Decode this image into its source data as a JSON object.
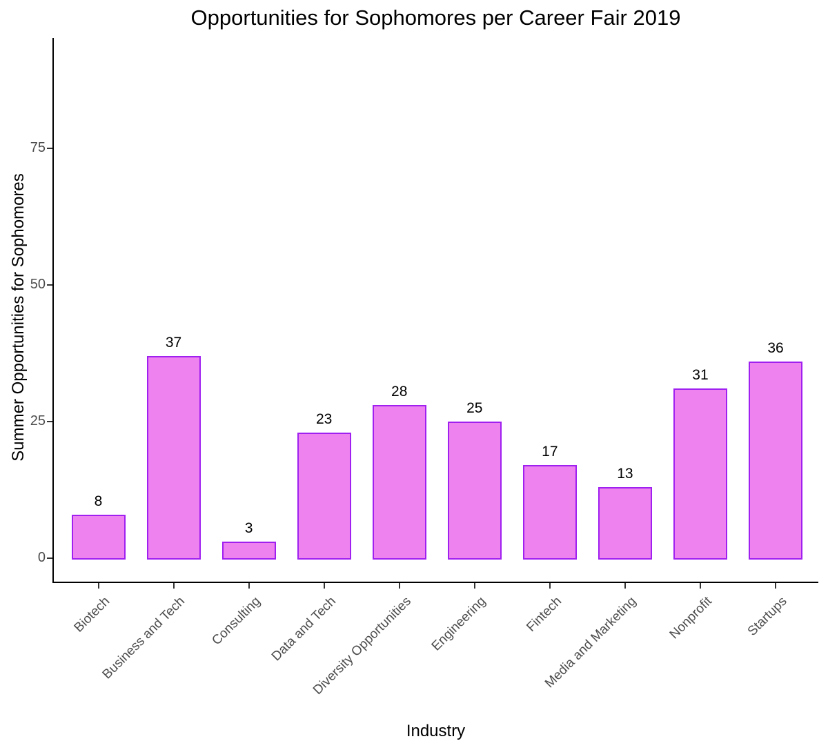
{
  "chart_data": {
    "type": "bar",
    "title": "Opportunities for Sophomores per Career Fair 2019",
    "xlabel": "Industry",
    "ylabel": "Summer Opportunities for Sophomores",
    "categories": [
      "Biotech",
      "Business and Tech",
      "Consulting",
      "Data and Tech",
      "Diversity Opportunities",
      "Engineering",
      "Fintech",
      "Media and Marketing",
      "Nonprofit",
      "Startups"
    ],
    "values": [
      8,
      37,
      3,
      23,
      28,
      25,
      17,
      13,
      31,
      36
    ],
    "bar_value_labels": [
      "8",
      "37",
      "3",
      "23",
      "28",
      "25",
      "17",
      "13",
      "31",
      "36"
    ],
    "yticks": [
      0,
      25,
      50,
      75
    ],
    "ylim": [
      0,
      94
    ],
    "grid": false,
    "legend": false,
    "x_tick_label_angle": 45,
    "colors": {
      "bar_fill": "#EE82EE",
      "bar_stroke": "#A020F0",
      "axis_line": "#000000",
      "axis_text": "#4D4D4D",
      "value_label_text": "#000000",
      "title_text": "#000000"
    }
  }
}
